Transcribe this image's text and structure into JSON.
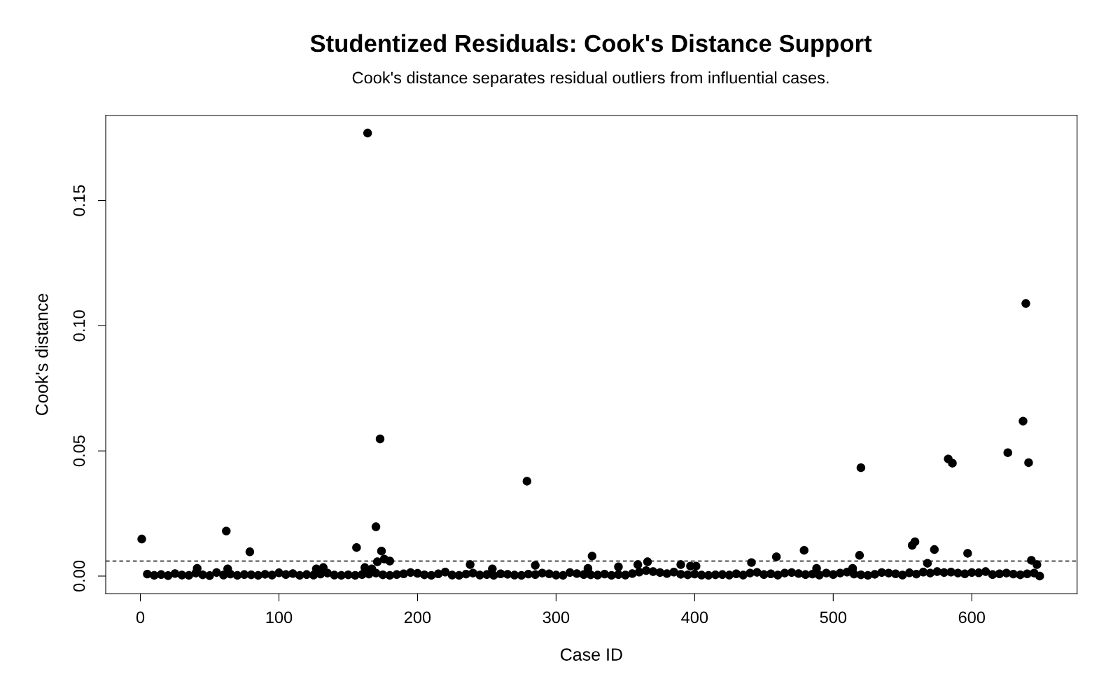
{
  "chart_data": {
    "type": "scatter",
    "title": "Studentized Residuals: Cook's Distance Support",
    "subtitle": "Cook's distance separates residual outliers from influential cases.",
    "xlabel": "Case ID",
    "ylabel": "Cook's distance",
    "marker": "circle",
    "grid": false,
    "legend": false,
    "xlim": [
      -25,
      676
    ],
    "xticks": [
      0,
      100,
      200,
      300,
      400,
      500,
      600
    ],
    "ylim": [
      -0.007,
      0.184
    ],
    "yticks": [
      {
        "value": 0,
        "label": "0.00"
      },
      {
        "value": 0.05,
        "label": "0.05"
      },
      {
        "value": 0.1,
        "label": "0.10"
      },
      {
        "value": 0.15,
        "label": "0.15"
      }
    ],
    "ref_lines": [
      {
        "axis": "y",
        "value": 0.006,
        "line_style": "dashed",
        "color": "#000000"
      }
    ],
    "series": [
      {
        "color": "#000000",
        "x": [
          1,
          62,
          63,
          79,
          41,
          156,
          164,
          162,
          167,
          170,
          173,
          174,
          171,
          176,
          180,
          127,
          132,
          238,
          254,
          279,
          285,
          323,
          326,
          345,
          359,
          366,
          390,
          397,
          401,
          441,
          459,
          479,
          488,
          519,
          520,
          514,
          559,
          557,
          568,
          573,
          583,
          586,
          597,
          626,
          637,
          639,
          641,
          643,
          647,
          649
        ],
        "values": [
          0.0148,
          0.018,
          0.0029,
          0.0097,
          0.0031,
          0.0114,
          0.177,
          0.0034,
          0.0029,
          0.0197,
          0.0548,
          0.01,
          0.0057,
          0.0068,
          0.006,
          0.0029,
          0.0034,
          0.0046,
          0.0029,
          0.0379,
          0.0043,
          0.0031,
          0.008,
          0.0037,
          0.0046,
          0.0057,
          0.0046,
          0.004,
          0.004,
          0.0054,
          0.0077,
          0.0103,
          0.0031,
          0.0083,
          0.0433,
          0.0031,
          0.0137,
          0.0123,
          0.0051,
          0.0106,
          0.0468,
          0.0451,
          0.0091,
          0.0493,
          0.0619,
          0.1089,
          0.0453,
          0.0063,
          0.0046,
          0
        ]
      },
      {
        "color": "#000000",
        "x": [
          5,
          10,
          15,
          20,
          25,
          30,
          35,
          40,
          45,
          50,
          55,
          60,
          65,
          70,
          75,
          80,
          85,
          90,
          95,
          100,
          105,
          110,
          115,
          120,
          125,
          130,
          135,
          140,
          145,
          150,
          155,
          160,
          165,
          170,
          175,
          180,
          185,
          190,
          195,
          200,
          205,
          210,
          215,
          220,
          225,
          230,
          235,
          240,
          245,
          250,
          255,
          260,
          265,
          270,
          275,
          280,
          285,
          290,
          295,
          300,
          305,
          310,
          315,
          320,
          325,
          330,
          335,
          340,
          345,
          350,
          355,
          360,
          365,
          370,
          375,
          380,
          385,
          390,
          395,
          400,
          405,
          410,
          415,
          420,
          425,
          430,
          435,
          440,
          445,
          450,
          455,
          460,
          465,
          470,
          475,
          480,
          485,
          490,
          495,
          500,
          505,
          510,
          515,
          520,
          525,
          530,
          535,
          540,
          545,
          550,
          555,
          560,
          565,
          570,
          575,
          580,
          585,
          590,
          595,
          600,
          605,
          610,
          615,
          620,
          625,
          630,
          635,
          640,
          645
        ],
        "values": [
          0.0008,
          0.0003,
          0.0006,
          0.0002,
          0.001,
          0.0004,
          0.0003,
          0.0012,
          0.0005,
          0.0002,
          0.0014,
          0.0004,
          0.0008,
          0.0003,
          0.0006,
          0.0005,
          0.0003,
          0.0007,
          0.0004,
          0.0013,
          0.0006,
          0.001,
          0.0003,
          0.0006,
          0.0004,
          0.0008,
          0.0012,
          0.0004,
          0.0003,
          0.0005,
          0.0003,
          0.0006,
          0.0008,
          0.0012,
          0.0005,
          0.0003,
          0.0006,
          0.0009,
          0.0014,
          0.0011,
          0.0005,
          0.0003,
          0.0009,
          0.0016,
          0.0004,
          0.0003,
          0.0008,
          0.0012,
          0.0004,
          0.0006,
          0.0003,
          0.0009,
          0.0007,
          0.0004,
          0.0003,
          0.0008,
          0.0006,
          0.0012,
          0.0009,
          0.0004,
          0.0003,
          0.0014,
          0.001,
          0.0006,
          0.0005,
          0.0004,
          0.0008,
          0.0003,
          0.0006,
          0.0004,
          0.001,
          0.0016,
          0.0022,
          0.0018,
          0.0014,
          0.001,
          0.0016,
          0.0007,
          0.0005,
          0.0008,
          0.0004,
          0.0003,
          0.0005,
          0.0006,
          0.0004,
          0.0009,
          0.0004,
          0.0012,
          0.0015,
          0.0006,
          0.0009,
          0.0004,
          0.0012,
          0.0014,
          0.001,
          0.0006,
          0.0008,
          0.0004,
          0.0012,
          0.0006,
          0.0012,
          0.0016,
          0.0008,
          0.0005,
          0.0003,
          0.0007,
          0.0014,
          0.0012,
          0.0009,
          0.0004,
          0.0013,
          0.0008,
          0.0016,
          0.0012,
          0.0018,
          0.0014,
          0.0016,
          0.0012,
          0.0009,
          0.0014,
          0.0013,
          0.0018,
          0.0006,
          0.0009,
          0.0012,
          0.0008,
          0.0005,
          0.0009,
          0.0012
        ]
      }
    ]
  }
}
